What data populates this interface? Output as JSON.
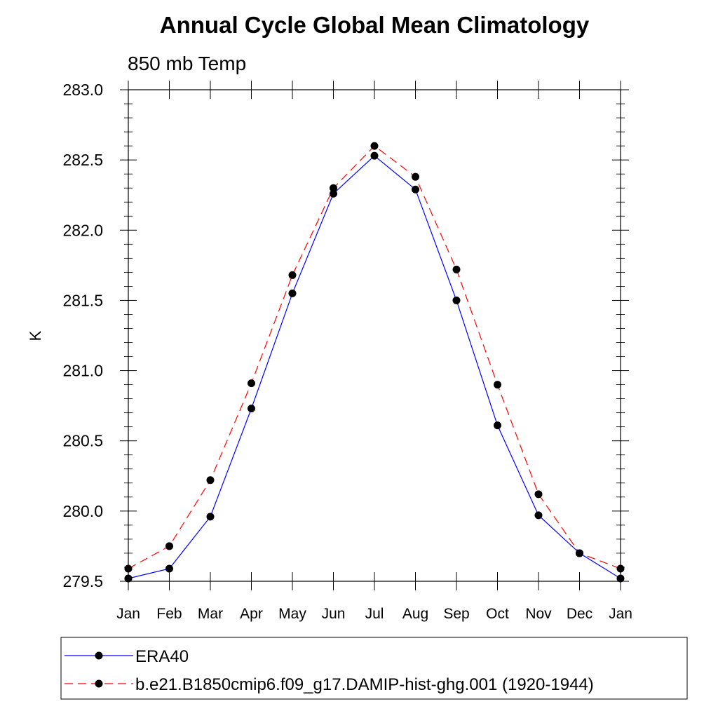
{
  "chart_data": {
    "type": "line",
    "title": "Annual Cycle Global Mean Climatology",
    "subtitle": "850 mb Temp",
    "xlabel": "",
    "ylabel": "K",
    "categories": [
      "Jan",
      "Feb",
      "Mar",
      "Apr",
      "May",
      "Jun",
      "Jul",
      "Aug",
      "Sep",
      "Oct",
      "Nov",
      "Dec",
      "Jan"
    ],
    "ylim": [
      279.5,
      283.0
    ],
    "yticks": [
      "279.5",
      "280.0",
      "280.5",
      "281.0",
      "281.5",
      "282.0",
      "282.5",
      "283.0"
    ],
    "grid": false,
    "legend_position": "bottom",
    "series": [
      {
        "name": "ERA40",
        "color": "#0000ff",
        "line_style": "solid",
        "marker": "filled-circle",
        "values": [
          279.52,
          279.59,
          279.96,
          280.73,
          281.55,
          282.26,
          282.53,
          282.29,
          281.5,
          280.61,
          279.97,
          279.7,
          279.52
        ]
      },
      {
        "name": "b.e21.B1850cmip6.f09_g17.DAMIP-hist-ghg.001 (1920-1944)",
        "color": "#ff0000",
        "line_style": "dashed",
        "marker": "filled-circle",
        "values": [
          279.59,
          279.75,
          280.22,
          280.91,
          281.68,
          282.3,
          282.6,
          282.38,
          281.72,
          280.9,
          280.12,
          279.7,
          279.59
        ]
      }
    ]
  }
}
